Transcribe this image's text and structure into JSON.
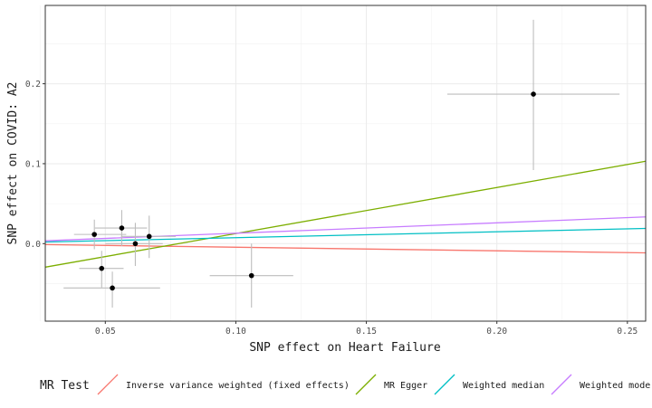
{
  "chart_data": {
    "type": "scatter",
    "title": "",
    "xlabel": "SNP effect on Heart Failure",
    "ylabel": "SNP effect on COVID: A2",
    "xlim": [
      0.027,
      0.257
    ],
    "ylim": [
      -0.097,
      0.298
    ],
    "x_ticks": [
      {
        "value": 0.05,
        "label": "0.05"
      },
      {
        "value": 0.1,
        "label": "0.10"
      },
      {
        "value": 0.15,
        "label": "0.15"
      },
      {
        "value": 0.2,
        "label": "0.20"
      },
      {
        "value": 0.25,
        "label": "0.25"
      }
    ],
    "y_ticks": [
      {
        "value": 0.0,
        "label": "0.0"
      },
      {
        "value": 0.1,
        "label": "0.1"
      },
      {
        "value": 0.2,
        "label": "0.2"
      }
    ],
    "grid": true,
    "points": [
      {
        "x": 0.0458,
        "y": 0.0115,
        "x_lo": 0.038,
        "x_hi": 0.058,
        "y_lo": -0.007,
        "y_hi": 0.03
      },
      {
        "x": 0.0486,
        "y": -0.031,
        "x_lo": 0.04,
        "x_hi": 0.057,
        "y_lo": -0.055,
        "y_hi": -0.009
      },
      {
        "x": 0.0527,
        "y": -0.0555,
        "x_lo": 0.034,
        "x_hi": 0.071,
        "y_lo": -0.08,
        "y_hi": -0.035
      },
      {
        "x": 0.0563,
        "y": 0.0195,
        "x_lo": 0.046,
        "x_hi": 0.066,
        "y_lo": -0.003,
        "y_hi": 0.042
      },
      {
        "x": 0.0615,
        "y": 0.0,
        "x_lo": 0.05,
        "x_hi": 0.072,
        "y_lo": -0.028,
        "y_hi": 0.026
      },
      {
        "x": 0.0668,
        "y": 0.009,
        "x_lo": 0.056,
        "x_hi": 0.077,
        "y_lo": -0.018,
        "y_hi": 0.035
      },
      {
        "x": 0.106,
        "y": -0.04,
        "x_lo": 0.09,
        "x_hi": 0.122,
        "y_lo": -0.08,
        "y_hi": 0.0
      },
      {
        "x": 0.214,
        "y": 0.187,
        "x_lo": 0.181,
        "x_hi": 0.247,
        "y_lo": 0.092,
        "y_hi": 0.28
      }
    ],
    "series": [
      {
        "name": "Inverse variance weighted (fixed effects)",
        "color": "#F8766D",
        "intercept": 0.0,
        "slope": -0.045
      },
      {
        "name": "MR Egger",
        "color": "#7CAE00",
        "intercept": -0.045,
        "slope": 0.576
      },
      {
        "name": "Weighted median",
        "color": "#00BFC4",
        "intercept": 0.0,
        "slope": 0.074
      },
      {
        "name": "Weighted mode",
        "color": "#C77CFF",
        "intercept": 0.0,
        "slope": 0.13
      }
    ],
    "legend": {
      "title": "MR Test",
      "position": "bottom"
    }
  }
}
